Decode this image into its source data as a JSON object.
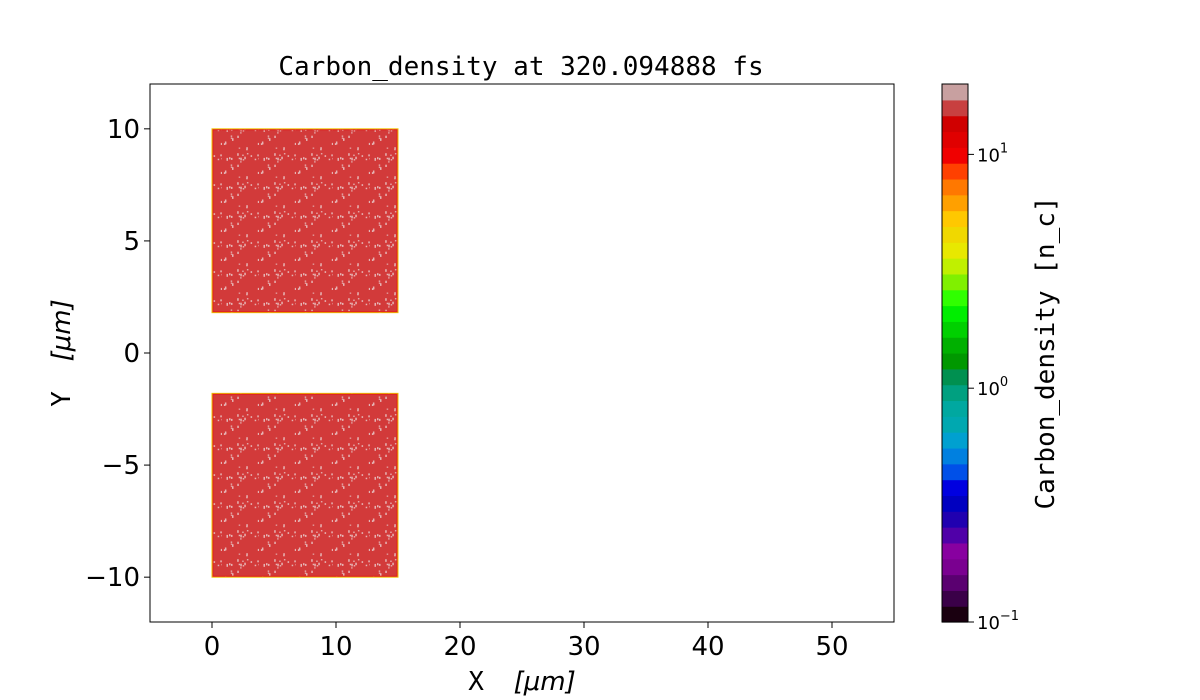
{
  "chart_data": {
    "type": "heatmap",
    "title": "Carbon_density at 320.094888 fs",
    "xlabel_text": "X",
    "xlabel_unit": "[μm]",
    "ylabel_text": "Y",
    "ylabel_unit": "[μm]",
    "xlim": [
      -5,
      55
    ],
    "ylim": [
      -12,
      12
    ],
    "xticks": [
      0,
      10,
      20,
      30,
      40,
      50
    ],
    "xtick_labels": [
      "0",
      "10",
      "20",
      "30",
      "40",
      "50"
    ],
    "yticks": [
      10,
      5,
      0,
      -5,
      -10
    ],
    "ytick_labels": [
      "10",
      "5",
      "0",
      "−5",
      "−10"
    ],
    "regions": [
      {
        "x": [
          0,
          15
        ],
        "y": [
          1.8,
          10
        ],
        "density_color": "#d23a3a",
        "speckle_color": "#e6b4b4",
        "edge_color": "#f0c000"
      },
      {
        "x": [
          0,
          15
        ],
        "y": [
          -10,
          -1.8
        ],
        "density_color": "#d23a3a",
        "speckle_color": "#e6b4b4",
        "edge_color": "#f0c000"
      }
    ],
    "colorbar": {
      "label_text": "Carbon_density",
      "label_unit": "[n_c]",
      "scale": "log",
      "range": [
        0.1,
        20
      ],
      "ticks": [
        {
          "value": 0.1,
          "base": "10",
          "exp": "−1"
        },
        {
          "value": 1,
          "base": "10",
          "exp": "0"
        },
        {
          "value": 10,
          "base": "10",
          "exp": "1"
        }
      ],
      "colors": [
        "#1a0010",
        "#3a0048",
        "#5a0070",
        "#7a0090",
        "#8800a0",
        "#5000a8",
        "#2000b0",
        "#0000c0",
        "#0000e0",
        "#0050e8",
        "#0080e0",
        "#00a0d0",
        "#00a8b0",
        "#00a8a0",
        "#00a080",
        "#009050",
        "#009800",
        "#00b000",
        "#00d000",
        "#00ee00",
        "#30ff00",
        "#80f000",
        "#c0f000",
        "#e8e800",
        "#f0d800",
        "#ffc800",
        "#ffa000",
        "#ff7800",
        "#ff4000",
        "#f00000",
        "#e00000",
        "#d00000",
        "#c84040",
        "#c8a0a0"
      ]
    }
  }
}
